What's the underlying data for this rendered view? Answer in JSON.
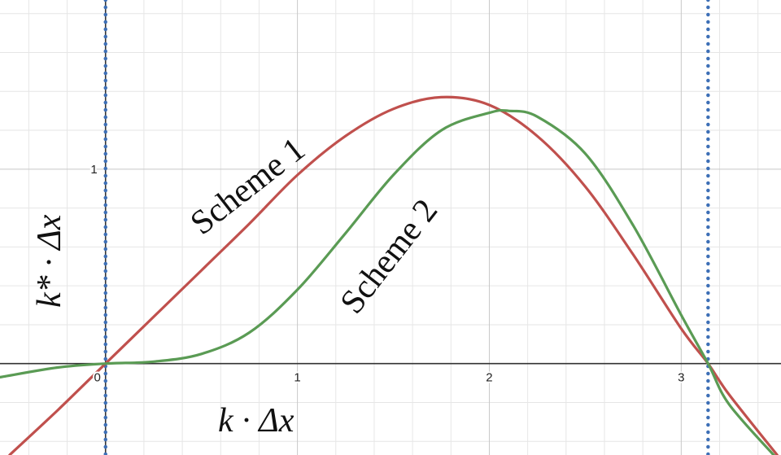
{
  "chart_data": {
    "type": "line",
    "xlabel": "k · Δx",
    "ylabel": "k* · Δx",
    "xlim": [
      -0.55,
      3.52
    ],
    "ylim": [
      -0.47,
      1.87
    ],
    "x_ticks": [
      "0",
      "1",
      "2",
      "3"
    ],
    "y_ticks": [
      "1"
    ],
    "grid": true,
    "series": [
      {
        "name": "Scheme 1",
        "color": "#c0504d",
        "x": [
          -0.5,
          -0.25,
          0,
          0.25,
          0.5,
          0.75,
          1,
          1.25,
          1.5,
          1.75,
          2,
          2.25,
          2.5,
          2.75,
          3,
          3.14,
          3.25,
          3.5
        ],
        "y": [
          -0.47,
          -0.24,
          0,
          0.24,
          0.48,
          0.72,
          0.97,
          1.17,
          1.31,
          1.37,
          1.33,
          1.17,
          0.91,
          0.56,
          0.18,
          0.0,
          -0.16,
          -0.47
        ]
      },
      {
        "name": "Scheme 2",
        "color": "#5a9b54",
        "x": [
          -0.55,
          -0.25,
          0,
          0.25,
          0.5,
          0.75,
          1,
          1.25,
          1.5,
          1.75,
          2,
          2.1,
          2.25,
          2.5,
          2.75,
          3,
          3.14,
          3.25,
          3.5
        ],
        "y": [
          -0.07,
          -0.02,
          0,
          0.01,
          0.05,
          0.16,
          0.38,
          0.67,
          0.97,
          1.2,
          1.29,
          1.3,
          1.27,
          1.08,
          0.71,
          0.25,
          0.0,
          -0.21,
          -0.49
        ]
      }
    ],
    "vertical_lines": [
      {
        "x": 0,
        "color": "#3d6fb6",
        "style": "dotted"
      },
      {
        "x": 3.14,
        "color": "#3d6fb6",
        "style": "dotted"
      }
    ],
    "annotations": [
      {
        "text": "Scheme 1",
        "series": "Scheme 1"
      },
      {
        "text": "Scheme 2",
        "series": "Scheme 2"
      }
    ]
  }
}
